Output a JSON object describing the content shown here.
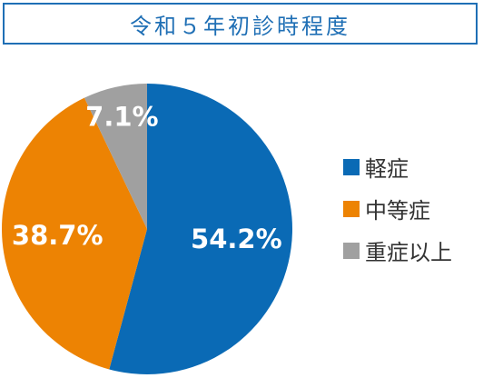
{
  "chart_data": {
    "type": "pie",
    "title": "令和５年初診時程度",
    "categories": [
      "軽症",
      "中等症",
      "重症以上"
    ],
    "values": [
      54.2,
      38.7,
      7.1
    ],
    "labels": [
      "54.2%",
      "38.7%",
      "7.1%"
    ],
    "colors": [
      "#0a6ab5",
      "#ed8303",
      "#a0a0a0"
    ],
    "legend_position": "right"
  }
}
